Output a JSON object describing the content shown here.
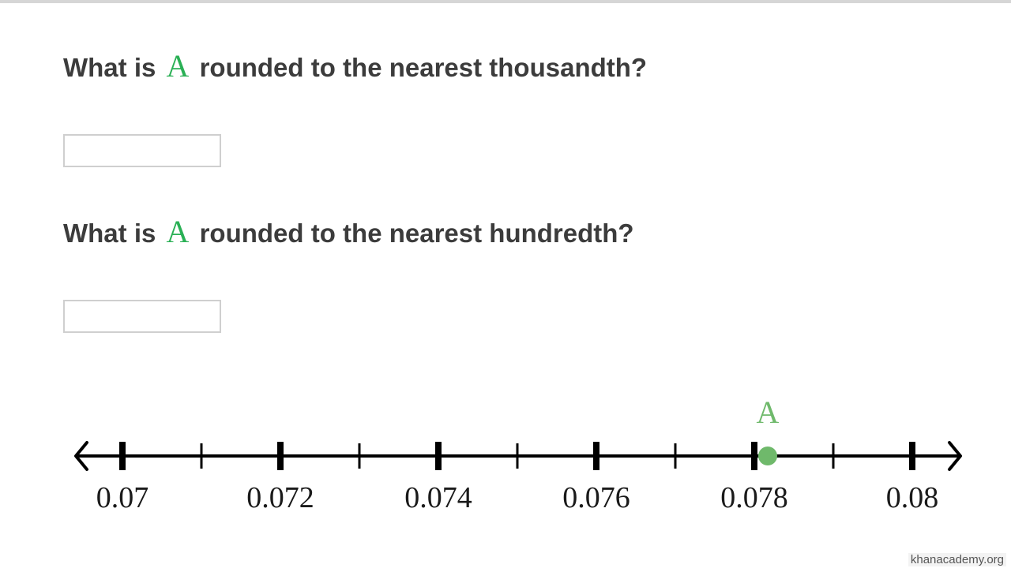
{
  "questions": [
    {
      "prefix": "What is",
      "variable": "A",
      "suffix": "rounded to the nearest thousandth?"
    },
    {
      "prefix": "What is",
      "variable": "A",
      "suffix": "rounded to the nearest hundredth?"
    }
  ],
  "colors": {
    "question_text": "#3c3c3c",
    "variable": "#2ab055",
    "point": "#6fb96b",
    "line": "#000000"
  },
  "number_line": {
    "min": 0.07,
    "max": 0.08,
    "ticks": [
      {
        "value": 0.07,
        "major": true,
        "label": "0.07"
      },
      {
        "value": 0.071,
        "major": false,
        "label": ""
      },
      {
        "value": 0.072,
        "major": true,
        "label": "0.072"
      },
      {
        "value": 0.073,
        "major": false,
        "label": ""
      },
      {
        "value": 0.074,
        "major": true,
        "label": "0.074"
      },
      {
        "value": 0.075,
        "major": false,
        "label": ""
      },
      {
        "value": 0.076,
        "major": true,
        "label": "0.076"
      },
      {
        "value": 0.077,
        "major": false,
        "label": ""
      },
      {
        "value": 0.078,
        "major": true,
        "label": "0.078"
      },
      {
        "value": 0.079,
        "major": false,
        "label": ""
      },
      {
        "value": 0.08,
        "major": true,
        "label": "0.08"
      }
    ],
    "point": {
      "label": "A",
      "value": 0.07817
    }
  },
  "watermark": "khanacademy.org"
}
